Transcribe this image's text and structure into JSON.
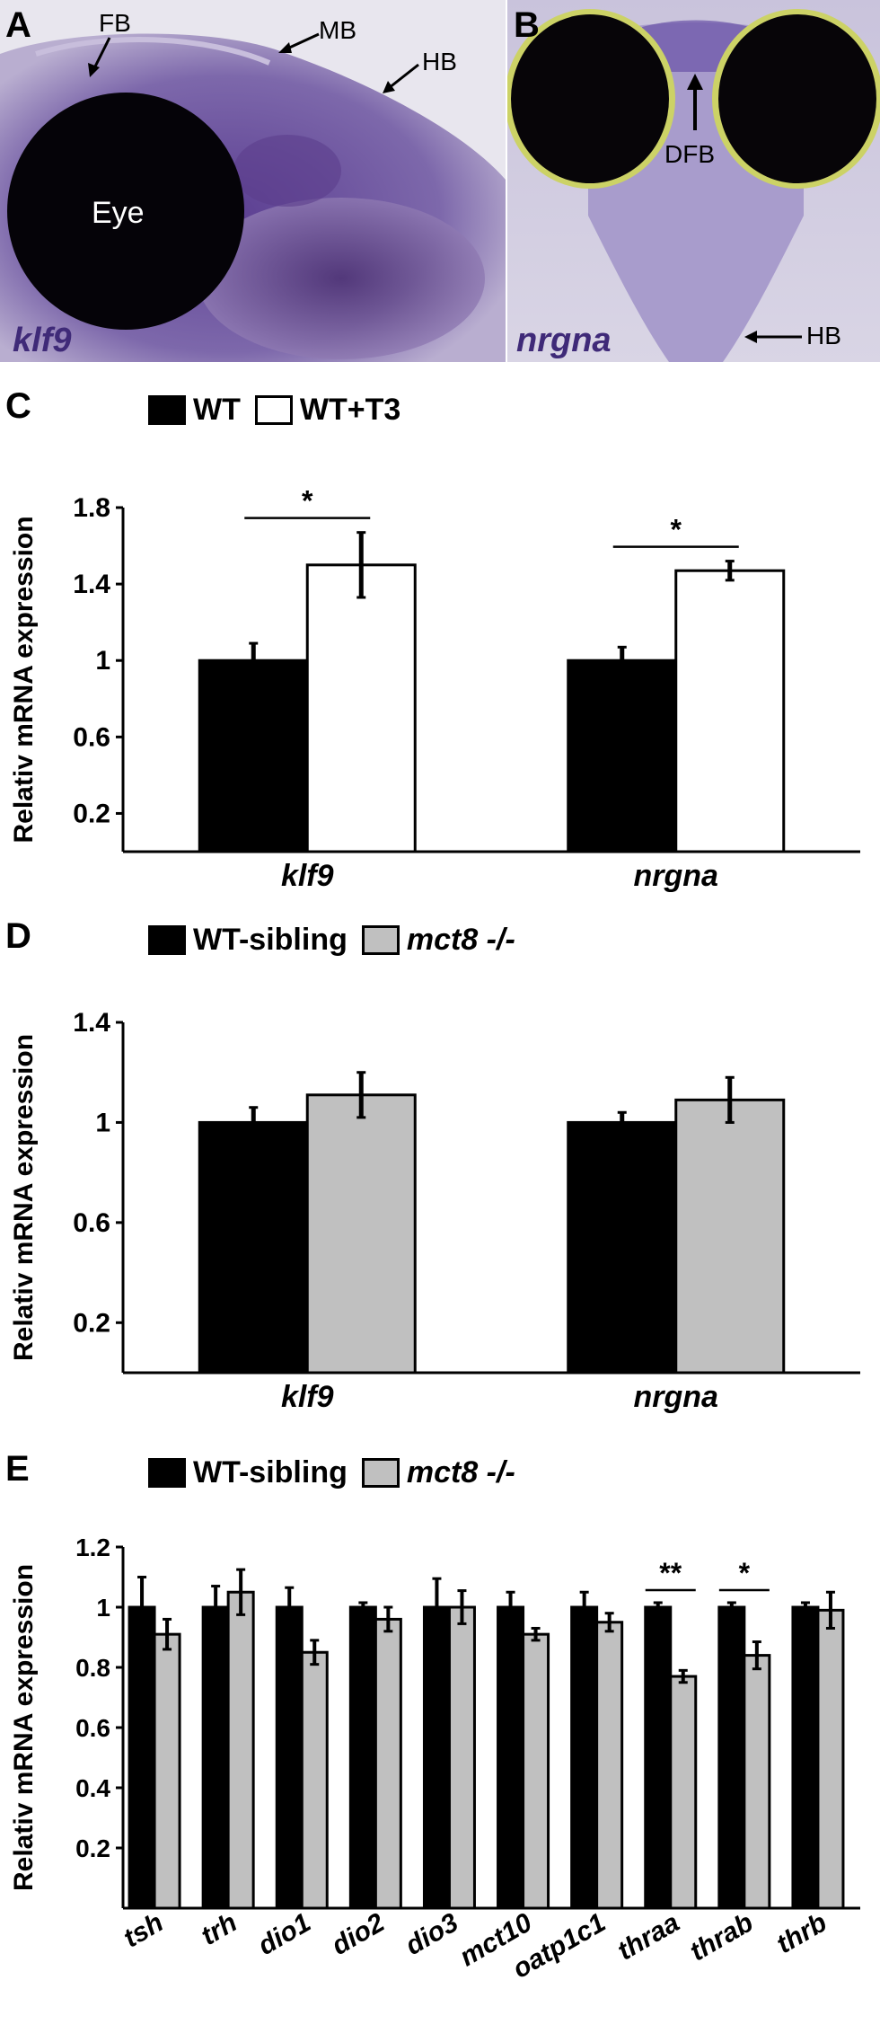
{
  "panels": {
    "A": {
      "label": "A",
      "gene": "klf9",
      "annotations": {
        "fb": "FB",
        "mb": "MB",
        "hb": "HB",
        "eye": "Eye"
      }
    },
    "B": {
      "label": "B",
      "gene": "nrgna",
      "annotations": {
        "dfb": "DFB",
        "hb": "HB"
      }
    }
  },
  "chart_data": [
    {
      "panel": "C",
      "type": "bar",
      "ylabel": "Relativ mRNA expression",
      "xlabel": "",
      "ylim": [
        0,
        1.8
      ],
      "yticks": [
        "0.2",
        "0.6",
        "1",
        "1.4",
        "1.8"
      ],
      "ytick_values": [
        0.2,
        0.6,
        1.0,
        1.4,
        1.8
      ],
      "grid": false,
      "categories": [
        "klf9",
        "nrgna"
      ],
      "series": [
        {
          "name": "WT",
          "values": [
            1.0,
            1.0
          ],
          "errors": [
            0.09,
            0.07
          ],
          "color": "#000000"
        },
        {
          "name": "WT+T3",
          "values": [
            1.5,
            1.47
          ],
          "errors": [
            0.17,
            0.05
          ],
          "color": "#ffffff"
        }
      ],
      "significance": [
        {
          "category_index": 0,
          "label": "*"
        },
        {
          "category_index": 1,
          "label": "*"
        }
      ]
    },
    {
      "panel": "D",
      "type": "bar",
      "ylabel": "Relativ mRNA expression",
      "xlabel": "",
      "ylim": [
        0,
        1.4
      ],
      "yticks": [
        "0.2",
        "0.6",
        "1",
        "1.4"
      ],
      "ytick_values": [
        0.2,
        0.6,
        1.0,
        1.4
      ],
      "grid": false,
      "categories": [
        "klf9",
        "nrgna"
      ],
      "series": [
        {
          "name": "WT-sibling",
          "values": [
            1.0,
            1.0
          ],
          "errors": [
            0.06,
            0.04
          ],
          "color": "#000000"
        },
        {
          "name": "mct8 -/-",
          "values": [
            1.11,
            1.09
          ],
          "errors": [
            0.09,
            0.09
          ],
          "color": "#c0c0c0"
        }
      ],
      "significance": []
    },
    {
      "panel": "E",
      "type": "bar",
      "ylabel": "Relativ mRNA expression",
      "xlabel": "",
      "ylim": [
        0,
        1.2
      ],
      "yticks": [
        "0.2",
        "0.4",
        "0.6",
        "0.8",
        "1",
        "1.2"
      ],
      "ytick_values": [
        0.2,
        0.4,
        0.6,
        0.8,
        1.0,
        1.2
      ],
      "grid": false,
      "categories": [
        "tsh",
        "trh",
        "dio1",
        "dio2",
        "dio3",
        "mct10",
        "oatp1c1",
        "thraa",
        "thrab",
        "thrb"
      ],
      "series": [
        {
          "name": "WT-sibling",
          "values": [
            1.0,
            1.0,
            1.0,
            1.0,
            1.0,
            1.0,
            1.0,
            1.0,
            1.0,
            1.0
          ],
          "errors": [
            0.1,
            0.07,
            0.065,
            0.015,
            0.095,
            0.05,
            0.05,
            0.015,
            0.015,
            0.015
          ],
          "color": "#000000"
        },
        {
          "name": "mct8 -/-",
          "values": [
            0.91,
            1.05,
            0.85,
            0.96,
            1.0,
            0.91,
            0.95,
            0.77,
            0.84,
            0.99
          ],
          "errors": [
            0.05,
            0.075,
            0.04,
            0.04,
            0.055,
            0.02,
            0.03,
            0.02,
            0.045,
            0.06
          ],
          "color": "#c0c0c0"
        }
      ],
      "significance": [
        {
          "category_index": 7,
          "label": "**"
        },
        {
          "category_index": 8,
          "label": "*"
        }
      ]
    }
  ]
}
